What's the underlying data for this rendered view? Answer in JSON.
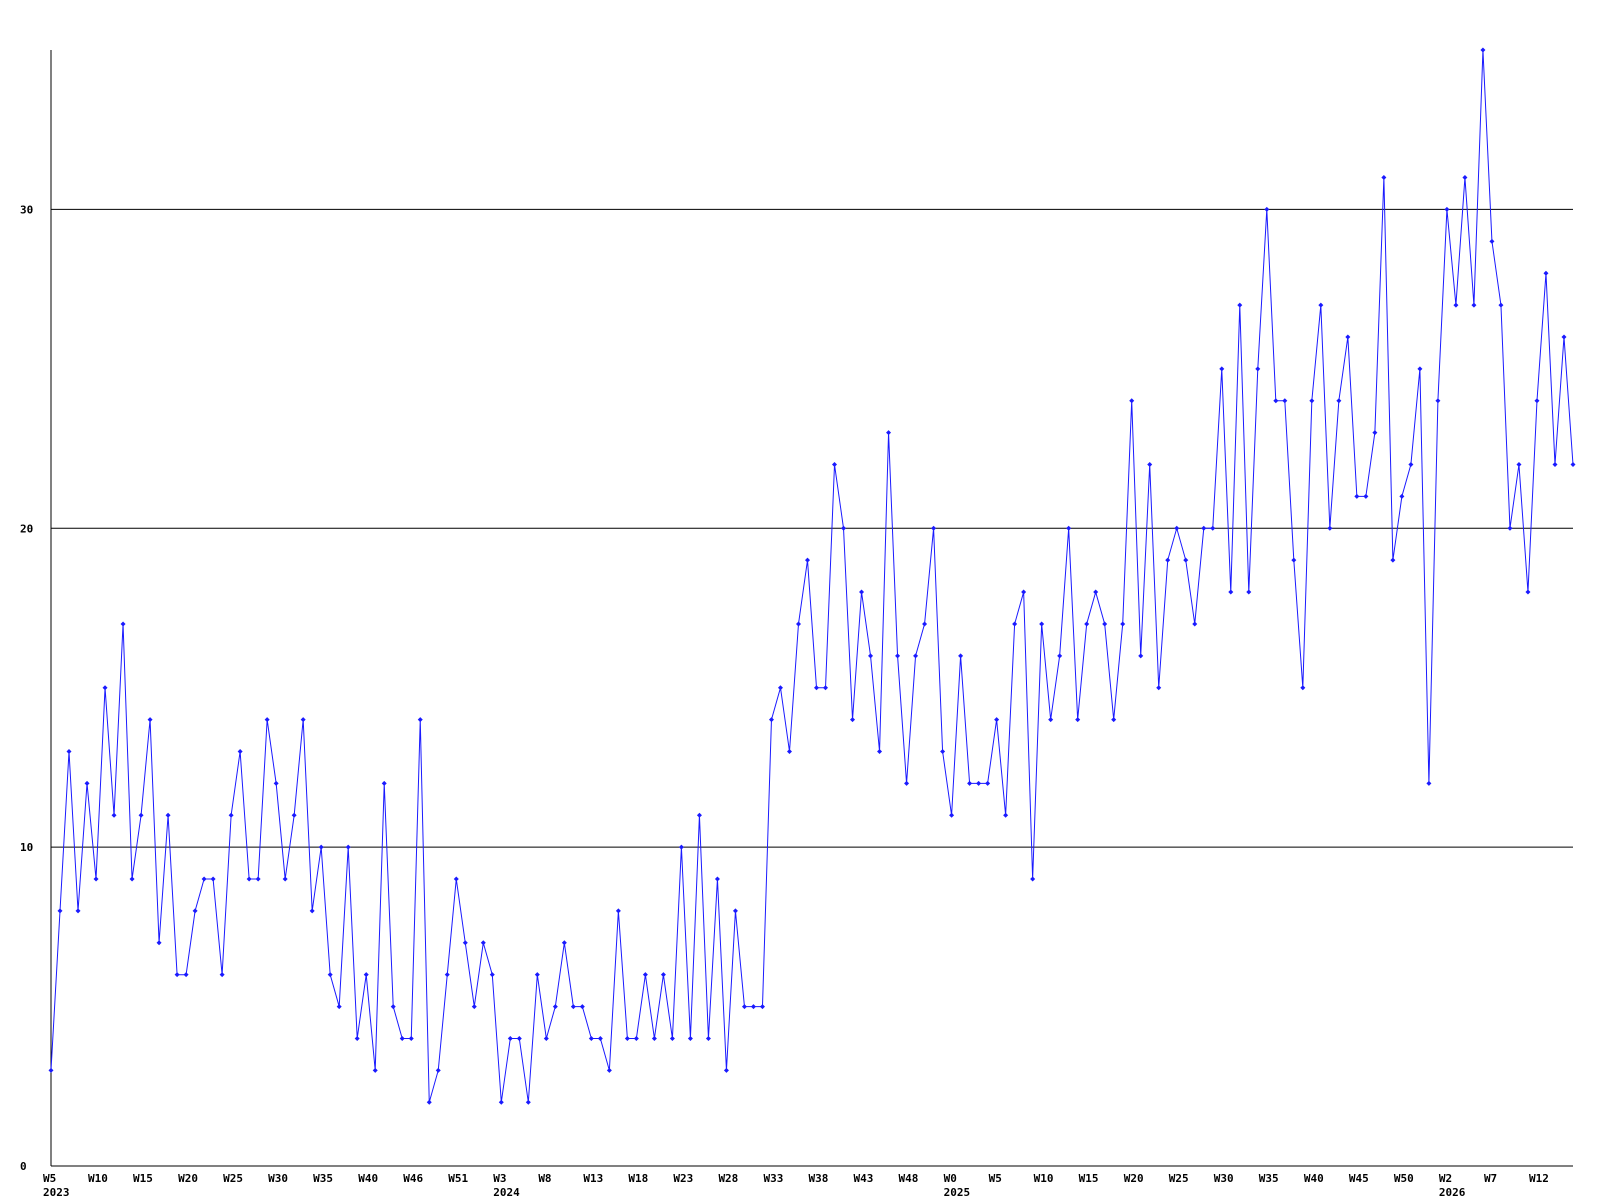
{
  "chart_data": {
    "type": "line",
    "categories": [
      "W5",
      null,
      null,
      null,
      null,
      "W10",
      null,
      null,
      null,
      null,
      "W15",
      null,
      null,
      null,
      null,
      "W20",
      null,
      null,
      null,
      null,
      "W25",
      null,
      null,
      null,
      null,
      "W30",
      null,
      null,
      null,
      null,
      "W35",
      null,
      null,
      null,
      null,
      "W40",
      null,
      null,
      null,
      null,
      "W46",
      null,
      null,
      null,
      null,
      "W51",
      null,
      null,
      null,
      null,
      "W3",
      null,
      null,
      null,
      null,
      "W8",
      null,
      null,
      null,
      null,
      "W13",
      null,
      null,
      null,
      null,
      "W18",
      null,
      null,
      null,
      null,
      "W23",
      null,
      null,
      null,
      null,
      "W28",
      null,
      null,
      null,
      null,
      "W33",
      null,
      null,
      null,
      null,
      "W38",
      null,
      null,
      null,
      null,
      "W43",
      null,
      null,
      null,
      null,
      "W48",
      null,
      null,
      null,
      null,
      "W0",
      null,
      null,
      null,
      null,
      "W5",
      null,
      null,
      null,
      null,
      "W10",
      null,
      null,
      null,
      null,
      "W15",
      null,
      null,
      null,
      null,
      "W20",
      null,
      null,
      null,
      null,
      "W25",
      null,
      null,
      null,
      null,
      "W30",
      null,
      null,
      null,
      null,
      "W35",
      null,
      null,
      null,
      null,
      "W40",
      null,
      null,
      null,
      null,
      "W45",
      null,
      null,
      null,
      null,
      "W50",
      null,
      null,
      null,
      null,
      "W2",
      null,
      null,
      null,
      null,
      "W7",
      null,
      null,
      null,
      null,
      "W12",
      null,
      null,
      null,
      null
    ],
    "year_labels": [
      "2023",
      null,
      null,
      null,
      null,
      null,
      null,
      null,
      null,
      null,
      null,
      null,
      null,
      null,
      null,
      null,
      null,
      null,
      null,
      null,
      null,
      null,
      null,
      null,
      null,
      null,
      null,
      null,
      null,
      null,
      null,
      null,
      null,
      null,
      null,
      null,
      null,
      null,
      null,
      null,
      null,
      null,
      null,
      null,
      null,
      null,
      null,
      null,
      null,
      null,
      "2024",
      null,
      null,
      null,
      null,
      null,
      null,
      null,
      null,
      null,
      null,
      null,
      null,
      null,
      null,
      null,
      null,
      null,
      null,
      null,
      null,
      null,
      null,
      null,
      null,
      null,
      null,
      null,
      null,
      null,
      null,
      null,
      null,
      null,
      null,
      null,
      null,
      null,
      null,
      null,
      null,
      null,
      null,
      null,
      null,
      null,
      null,
      null,
      null,
      null,
      "2025",
      null,
      null,
      null,
      null,
      null,
      null,
      null,
      null,
      null,
      null,
      null,
      null,
      null,
      null,
      null,
      null,
      null,
      null,
      null,
      null,
      null,
      null,
      null,
      null,
      null,
      null,
      null,
      null,
      null,
      null,
      null,
      null,
      null,
      null,
      null,
      null,
      null,
      null,
      null,
      null,
      null,
      null,
      null,
      null,
      null,
      null,
      null,
      null,
      null,
      null,
      null,
      null,
      null,
      null,
      "2026",
      null,
      null,
      null,
      null,
      null,
      null,
      null,
      null,
      null,
      null,
      null,
      null,
      null,
      null
    ],
    "series": [
      {
        "color": "#1a1aff",
        "values": [
          3,
          8,
          13,
          8,
          12,
          9,
          15,
          11,
          17,
          9,
          11,
          14,
          7,
          11,
          6,
          6,
          8,
          9,
          9,
          6,
          11,
          13,
          9,
          9,
          14,
          12,
          9,
          11,
          14,
          8,
          10,
          6,
          5,
          10,
          4,
          6,
          3,
          12,
          5,
          4,
          4,
          14,
          2,
          3,
          6,
          9,
          7,
          5,
          7,
          6,
          2,
          4,
          4,
          2,
          6,
          4,
          5,
          7,
          5,
          5,
          4,
          4,
          3,
          8,
          4,
          4,
          6,
          4,
          6,
          4,
          10,
          4,
          11,
          4,
          9,
          3,
          8,
          5,
          5,
          5,
          14,
          15,
          13,
          17,
          19,
          15,
          15,
          22,
          20,
          14,
          18,
          16,
          13,
          23,
          16,
          12,
          16,
          17,
          20,
          13,
          11,
          16,
          12,
          12,
          12,
          14,
          11,
          17,
          18,
          9,
          17,
          14,
          16,
          20,
          14,
          17,
          18,
          17,
          14,
          17,
          24,
          16,
          22,
          15,
          19,
          20,
          19,
          17,
          20,
          20,
          25,
          18,
          27,
          18,
          25,
          30,
          24,
          24,
          19,
          15,
          24,
          27,
          20,
          24,
          26,
          21,
          21,
          23,
          31,
          19,
          21,
          22,
          25,
          12,
          24,
          30,
          27,
          31,
          27,
          35,
          29,
          27,
          20,
          22,
          18,
          24,
          28,
          22,
          26,
          22
        ]
      }
    ],
    "ylim": [
      0,
      35
    ],
    "yticks": [
      0,
      10,
      20,
      30
    ],
    "grid": true
  }
}
